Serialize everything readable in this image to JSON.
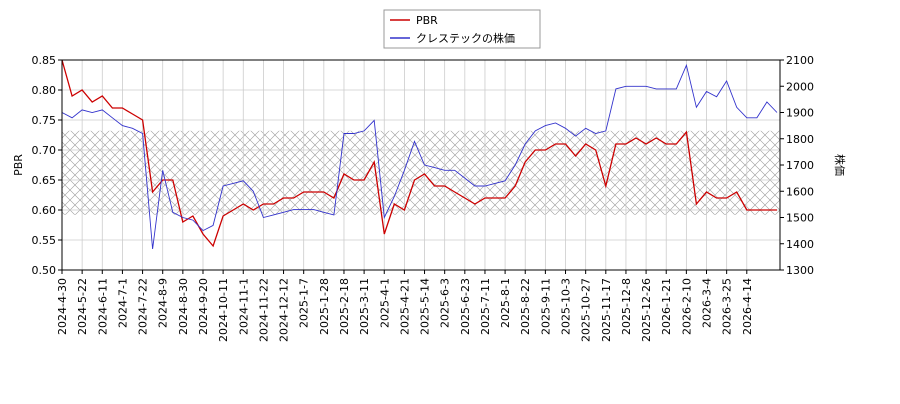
{
  "chart_data": {
    "type": "line",
    "legend_labels_position": "top",
    "categories": [
      "2024-4-30",
      null,
      "2024-5-22",
      null,
      "2024-6-11",
      null,
      "2024-7-1",
      null,
      "2024-7-22",
      null,
      "2024-8-9",
      null,
      "2024-8-30",
      null,
      "2024-9-20",
      null,
      "2024-10-11",
      null,
      "2024-11-1",
      null,
      "2024-11-22",
      null,
      "2024-12-12",
      null,
      "2025-1-7",
      null,
      "2025-1-28",
      null,
      "2025-2-18",
      null,
      "2025-3-11",
      null,
      "2025-4-1",
      null,
      "2025-4-21",
      null,
      "2025-5-14",
      null,
      "2025-6-3",
      null,
      "2025-6-23",
      null,
      "2025-7-11",
      null,
      "2025-8-1",
      null,
      "2025-8-22",
      null,
      "2025-9-11",
      null,
      "2025-10-3",
      null,
      "2025-10-27",
      null,
      "2025-11-17",
      null,
      "2025-12-8",
      null,
      "2025-12-26",
      null,
      "2026-1-21",
      null,
      "2026-2-10",
      null,
      "2026-3-4",
      null,
      "2026-3-25",
      null,
      "2026-4-14",
      null,
      null,
      null
    ],
    "ylabel": "PBR",
    "y2label": "株価",
    "ylim": [
      0.5,
      0.85
    ],
    "yticks": [
      {
        "value": 0.5,
        "label": "0.50"
      },
      {
        "value": 0.55,
        "label": "0.55"
      },
      {
        "value": 0.6,
        "label": "0.60"
      },
      {
        "value": 0.65,
        "label": "0.65"
      },
      {
        "value": 0.7,
        "label": "0.70"
      },
      {
        "value": 0.75,
        "label": "0.75"
      },
      {
        "value": 0.8,
        "label": "0.80"
      },
      {
        "value": 0.85,
        "label": "0.85"
      }
    ],
    "y2lim": [
      1300,
      2100
    ],
    "y2ticks": [
      1300,
      1400,
      1500,
      1600,
      1700,
      1800,
      1900,
      2000,
      2100
    ],
    "grid": true,
    "hatch_range": [
      0.592,
      0.732
    ],
    "series": [
      {
        "name": "PBR",
        "color": "#cc0000",
        "axis": "y",
        "values": [
          0.85,
          0.79,
          0.8,
          0.78,
          0.79,
          0.77,
          0.77,
          0.76,
          0.75,
          0.63,
          0.65,
          0.65,
          0.58,
          0.59,
          0.56,
          0.54,
          0.59,
          0.6,
          0.61,
          0.6,
          0.61,
          0.61,
          0.62,
          0.62,
          0.63,
          0.63,
          0.63,
          0.62,
          0.66,
          0.65,
          0.65,
          0.68,
          0.56,
          0.61,
          0.6,
          0.65,
          0.66,
          0.64,
          0.64,
          0.63,
          0.62,
          0.61,
          0.62,
          0.62,
          0.62,
          0.64,
          0.68,
          0.7,
          0.7,
          0.71,
          0.71,
          0.69,
          0.71,
          0.7,
          0.64,
          0.71,
          0.71,
          0.72,
          0.71,
          0.72,
          0.71,
          0.71,
          0.73,
          0.61,
          0.63,
          0.62,
          0.62,
          0.63,
          0.6,
          0.6,
          0.6,
          0.6
        ]
      },
      {
        "name": "クレステックの株価",
        "color": "#3333cc",
        "axis": "y2",
        "values": [
          1900,
          1880,
          1910,
          1900,
          1910,
          1880,
          1850,
          1840,
          1820,
          1380,
          1680,
          1520,
          1500,
          1490,
          1450,
          1470,
          1620,
          1630,
          1640,
          1600,
          1500,
          1510,
          1520,
          1530,
          1530,
          1530,
          1520,
          1510,
          1820,
          1820,
          1830,
          1870,
          1500,
          1580,
          1680,
          1790,
          1700,
          1690,
          1680,
          1680,
          1650,
          1620,
          1620,
          1630,
          1640,
          1700,
          1780,
          1830,
          1850,
          1860,
          1840,
          1810,
          1840,
          1820,
          1830,
          1990,
          2000,
          2000,
          2000,
          1990,
          1990,
          1990,
          2080,
          1920,
          1980,
          1960,
          2020,
          1920,
          1880,
          1880,
          1940,
          1900
        ]
      }
    ]
  }
}
